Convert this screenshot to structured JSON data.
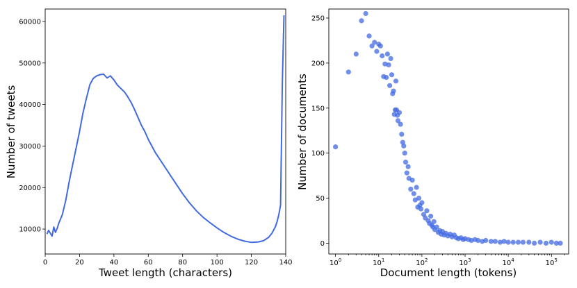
{
  "colors": {
    "line": "#4169e1",
    "scatter": "#4169e1"
  },
  "chart_data": [
    {
      "type": "line",
      "xlabel": "Tweet length (characters)",
      "ylabel": "Number of tweets",
      "xlim": [
        0,
        140
      ],
      "ylim": [
        4000,
        63000
      ],
      "xticks": [
        0,
        20,
        40,
        60,
        80,
        100,
        120,
        140
      ],
      "yticks": [
        10000,
        20000,
        30000,
        40000,
        50000,
        60000
      ],
      "grid": false,
      "series": [
        {
          "x": [
            1,
            2,
            3,
            4,
            5,
            6,
            7,
            8,
            10,
            12,
            14,
            16,
            18,
            20,
            22,
            24,
            26,
            28,
            30,
            32,
            34,
            36,
            38,
            40,
            42,
            44,
            46,
            48,
            50,
            52,
            54,
            56,
            58,
            60,
            64,
            68,
            72,
            76,
            80,
            84,
            88,
            92,
            96,
            100,
            104,
            108,
            112,
            116,
            120,
            124,
            127,
            130,
            132,
            134,
            135,
            136,
            137,
            138,
            139
          ],
          "y": [
            8800,
            9700,
            9000,
            8300,
            10500,
            9200,
            10200,
            11500,
            13500,
            17000,
            21500,
            25500,
            29500,
            33500,
            38000,
            41500,
            44800,
            46300,
            46900,
            47200,
            47300,
            46400,
            46900,
            45900,
            44700,
            43900,
            43100,
            41900,
            40500,
            38800,
            36900,
            35000,
            33500,
            31600,
            28500,
            26000,
            23500,
            21000,
            18500,
            16300,
            14400,
            12800,
            11500,
            10300,
            9200,
            8300,
            7600,
            7100,
            6800,
            6900,
            7200,
            8000,
            9000,
            10600,
            11800,
            13500,
            15800,
            45000,
            61500
          ]
        }
      ]
    },
    {
      "type": "scatter",
      "xlabel": "Document length (tokens)",
      "ylabel": "Number of documents",
      "xscale": "log",
      "xlim": [
        0.7,
        250000
      ],
      "ylim": [
        -12,
        260
      ],
      "xticks": [
        1,
        10,
        100,
        1000,
        10000,
        100000
      ],
      "xticklabels": [
        {
          "base": "10",
          "exp": "0"
        },
        {
          "base": "10",
          "exp": "1"
        },
        {
          "base": "10",
          "exp": "2"
        },
        {
          "base": "10",
          "exp": "3"
        },
        {
          "base": "10",
          "exp": "4"
        },
        {
          "base": "10",
          "exp": "5"
        }
      ],
      "yticks": [
        0,
        50,
        100,
        150,
        200,
        250
      ],
      "grid": false,
      "series": [
        {
          "points": [
            [
              1,
              107
            ],
            [
              2,
              190
            ],
            [
              3,
              210
            ],
            [
              4,
              247
            ],
            [
              5,
              255
            ],
            [
              6,
              230
            ],
            [
              7,
              219
            ],
            [
              8,
              223
            ],
            [
              9,
              213
            ],
            [
              10,
              221
            ],
            [
              11,
              219
            ],
            [
              12,
              208
            ],
            [
              13,
              185
            ],
            [
              14,
              199
            ],
            [
              15,
              184
            ],
            [
              16,
              210
            ],
            [
              17,
              198
            ],
            [
              18,
              175
            ],
            [
              19,
              205
            ],
            [
              20,
              187
            ],
            [
              21,
              166
            ],
            [
              22,
              169
            ],
            [
              23,
              143
            ],
            [
              24,
              148
            ],
            [
              25,
              180
            ],
            [
              26,
              148
            ],
            [
              27,
              142
            ],
            [
              28,
              136
            ],
            [
              30,
              145
            ],
            [
              32,
              132
            ],
            [
              34,
              121
            ],
            [
              36,
              112
            ],
            [
              38,
              108
            ],
            [
              40,
              100
            ],
            [
              42,
              90
            ],
            [
              45,
              78
            ],
            [
              48,
              85
            ],
            [
              50,
              72
            ],
            [
              55,
              60
            ],
            [
              60,
              70
            ],
            [
              65,
              55
            ],
            [
              70,
              48
            ],
            [
              75,
              62
            ],
            [
              80,
              40
            ],
            [
              85,
              50
            ],
            [
              90,
              42
            ],
            [
              95,
              38
            ],
            [
              100,
              45
            ],
            [
              110,
              32
            ],
            [
              120,
              28
            ],
            [
              130,
              36
            ],
            [
              140,
              25
            ],
            [
              150,
              22
            ],
            [
              160,
              30
            ],
            [
              170,
              20
            ],
            [
              180,
              18
            ],
            [
              190,
              24
            ],
            [
              200,
              15
            ],
            [
              220,
              18
            ],
            [
              240,
              12
            ],
            [
              260,
              14
            ],
            [
              280,
              10
            ],
            [
              300,
              13
            ],
            [
              330,
              9
            ],
            [
              360,
              11
            ],
            [
              400,
              8
            ],
            [
              450,
              10
            ],
            [
              500,
              7
            ],
            [
              560,
              9
            ],
            [
              630,
              6
            ],
            [
              700,
              5
            ],
            [
              800,
              6
            ],
            [
              900,
              4
            ],
            [
              1000,
              5
            ],
            [
              1200,
              4
            ],
            [
              1400,
              3
            ],
            [
              1700,
              4
            ],
            [
              2000,
              3
            ],
            [
              2500,
              2
            ],
            [
              3000,
              3
            ],
            [
              4000,
              2
            ],
            [
              5000,
              2
            ],
            [
              6500,
              1
            ],
            [
              8000,
              2
            ],
            [
              10000,
              1
            ],
            [
              13000,
              1
            ],
            [
              17000,
              1
            ],
            [
              22000,
              1
            ],
            [
              30000,
              1
            ],
            [
              40000,
              0
            ],
            [
              55000,
              1
            ],
            [
              75000,
              0
            ],
            [
              100000,
              1
            ],
            [
              130000,
              0
            ],
            [
              160000,
              0
            ]
          ]
        }
      ]
    }
  ]
}
